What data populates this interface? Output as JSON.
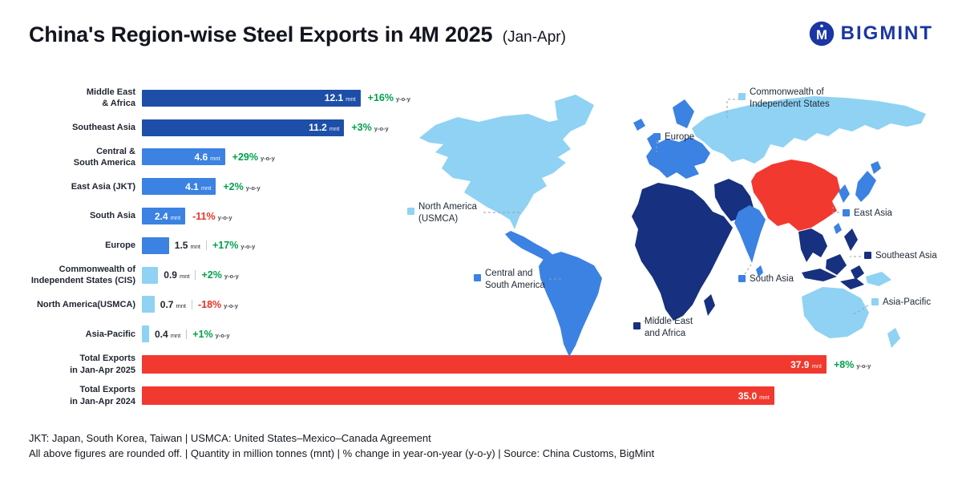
{
  "header": {
    "title": "China's Region-wise Steel Exports in 4M 2025",
    "subtitle": "(Jan-Apr)",
    "brand": "BIGMINT"
  },
  "colors": {
    "dark_blue": "#1e4fa8",
    "mid_blue": "#3b82e2",
    "light_blue": "#8fd2f3",
    "navy_map": "#17307f",
    "red": "#f2392f",
    "green": "#00a14b",
    "pct_red": "#e63329",
    "brand_navy": "#1b36a4"
  },
  "chart_data": {
    "type": "bar",
    "orientation": "horizontal",
    "title": "China's Region-wise Steel Exports in 4M 2025 (Jan-Apr)",
    "unit": "mnt",
    "yoy": "y-o-y",
    "max": 37.9,
    "rows": [
      {
        "label_l1": "Middle East",
        "label_l2": "& Africa",
        "value": 12.1,
        "value_str": "12.1",
        "pct": "+16%",
        "trend": "up",
        "shade": "dark",
        "value_pos": "inside"
      },
      {
        "label_l1": "Southeast Asia",
        "value": 11.2,
        "value_str": "11.2",
        "pct": "+3%",
        "trend": "up",
        "shade": "dark",
        "value_pos": "inside"
      },
      {
        "label_l1": "Central &",
        "label_l2": "South America",
        "value": 4.6,
        "value_str": "4.6",
        "pct": "+29%",
        "trend": "up",
        "shade": "mid",
        "value_pos": "inside"
      },
      {
        "label_l1": "East Asia (JKT)",
        "value": 4.1,
        "value_str": "4.1",
        "pct": "+2%",
        "trend": "up",
        "shade": "mid",
        "value_pos": "inside"
      },
      {
        "label_l1": "South Asia",
        "value": 2.4,
        "value_str": "2.4",
        "pct": "-11%",
        "trend": "down",
        "shade": "mid",
        "value_pos": "inside"
      },
      {
        "label_l1": "Europe",
        "value": 1.5,
        "value_str": "1.5",
        "pct": "+17%",
        "trend": "up",
        "shade": "mid",
        "value_pos": "outside"
      },
      {
        "label_l1": "Commonwealth of",
        "label_l2": "Independent States (CIS)",
        "value": 0.9,
        "value_str": "0.9",
        "pct": "+2%",
        "trend": "up",
        "shade": "light",
        "value_pos": "outside"
      },
      {
        "label_l1": "North America(USMCA)",
        "value": 0.7,
        "value_str": "0.7",
        "pct": "-18%",
        "trend": "down",
        "shade": "light",
        "value_pos": "outside"
      },
      {
        "label_l1": "Asia-Pacific",
        "value": 0.4,
        "value_str": "0.4",
        "pct": "+1%",
        "trend": "up",
        "shade": "light",
        "value_pos": "outside"
      },
      {
        "label_l1": "Total Exports",
        "label_l2": "in Jan-Apr 2025",
        "value": 37.9,
        "value_str": "37.9",
        "pct": "+8%",
        "trend": "up",
        "shade": "red",
        "value_pos": "inside"
      },
      {
        "label_l1": "Total Exports",
        "label_l2": "in Jan-Apr 2024",
        "value": 35.0,
        "value_str": "35.0",
        "shade": "red",
        "value_pos": "inside"
      }
    ]
  },
  "map": {
    "labels": [
      {
        "l1": "Commonwealth of",
        "l2": "Independent States",
        "shade": "light"
      },
      {
        "l1": "Europe",
        "shade": "mid"
      },
      {
        "l1": "North America",
        "l2": "(USMCA)",
        "shade": "light"
      },
      {
        "l1": "East Asia",
        "shade": "mid"
      },
      {
        "l1": "Southeast Asia",
        "shade": "dark"
      },
      {
        "l1": "Central and",
        "l2": "South America",
        "shade": "mid"
      },
      {
        "l1": "South Asia",
        "shade": "mid"
      },
      {
        "l1": "Middle East",
        "l2": "and Africa",
        "shade": "dark"
      },
      {
        "l1": "Asia-Pacific",
        "shade": "light"
      }
    ]
  },
  "footer": {
    "line1": "JKT: Japan, South Korea, Taiwan | USMCA: United States–Mexico–Canada Agreement",
    "line2": "All above figures are rounded off. | Quantity in million tonnes (mnt) | % change in year-on-year (y-o-y) | Source: China Customs, BigMint"
  }
}
